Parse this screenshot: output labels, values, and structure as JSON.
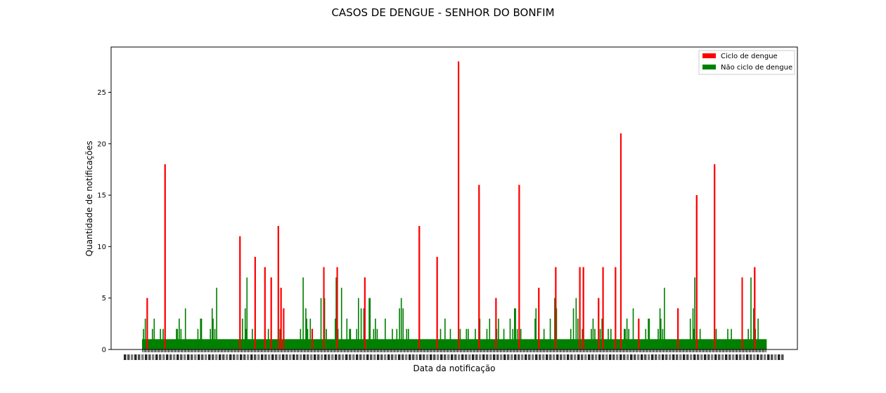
{
  "chart_data": {
    "type": "bar",
    "title": "CASOS DE DENGUE - SENHOR DO BONFIM",
    "xlabel": "Data da notificação",
    "ylabel": "Quantidade de notificações",
    "ylim": [
      0,
      29.4
    ],
    "yticks": [
      0,
      5,
      10,
      15,
      20,
      25
    ],
    "grid": false,
    "legend_position": "top-right",
    "colors": {
      "ciclo": "#ff0000",
      "nao_ciclo": "#008000"
    },
    "series": [
      {
        "name": "Ciclo de dengue",
        "color": "#ff0000"
      },
      {
        "name": "Não ciclo de dengue",
        "color": "#008000"
      }
    ],
    "x_tick_labels_note": "",
    "background_green_values": [
      1,
      2,
      1,
      3,
      1,
      2,
      1,
      1,
      1,
      1,
      1,
      2,
      1,
      3,
      1,
      1,
      1,
      1,
      1,
      1,
      2,
      1,
      1,
      2,
      1,
      1,
      1,
      1,
      1,
      1,
      1,
      1,
      1,
      1,
      1,
      1,
      1,
      1,
      2,
      2,
      1,
      3,
      1,
      2,
      1,
      1,
      1,
      1,
      4,
      1,
      1,
      1,
      1,
      1,
      1,
      1,
      1,
      1,
      1,
      1,
      1,
      1,
      2,
      1,
      1,
      3,
      3,
      1,
      1,
      1,
      1,
      1,
      1,
      1,
      1,
      1,
      2,
      1,
      4,
      3,
      1,
      2,
      1,
      6,
      1,
      1,
      1,
      1,
      1,
      1,
      1,
      1,
      1,
      1,
      1,
      1,
      1,
      1,
      1,
      1,
      1,
      1,
      1,
      1,
      1,
      1,
      1,
      1,
      1,
      1,
      1,
      1,
      3,
      1,
      1,
      4,
      2,
      7,
      1,
      1,
      1,
      1,
      1,
      2,
      1,
      1,
      1,
      1,
      1,
      1,
      1,
      1,
      1,
      1,
      1,
      1,
      1,
      1,
      1,
      1,
      1,
      2,
      1,
      1,
      1,
      1,
      1,
      1,
      1,
      1,
      1,
      1,
      1,
      1,
      2,
      1,
      1,
      1,
      2,
      1,
      1,
      1,
      1,
      1,
      1,
      1,
      1,
      1,
      1,
      1,
      1,
      1,
      1,
      1,
      1,
      1,
      1,
      2,
      1,
      1,
      7,
      1,
      1,
      4,
      3,
      2,
      1,
      1,
      3,
      1,
      1,
      1,
      1,
      1,
      1,
      1,
      1,
      1,
      1,
      1,
      5,
      1,
      1,
      1,
      5,
      1,
      2,
      1,
      1,
      1,
      1,
      1,
      1,
      1,
      1,
      1,
      3,
      7,
      1,
      2,
      1,
      1,
      1,
      6,
      1,
      1,
      1,
      1,
      1,
      3,
      1,
      1,
      2,
      2,
      1,
      1,
      1,
      1,
      1,
      1,
      2,
      1,
      5,
      1,
      1,
      4,
      1,
      1,
      4,
      1,
      1,
      1,
      1,
      1,
      5,
      5,
      1,
      1,
      1,
      2,
      1,
      3,
      1,
      2,
      1,
      1,
      1,
      1,
      1,
      1,
      1,
      1,
      3,
      1,
      1,
      1,
      1,
      1,
      1,
      1,
      2,
      1,
      1,
      1,
      1,
      2,
      1,
      1,
      4,
      1,
      5,
      1,
      4,
      1,
      1,
      1,
      2,
      1,
      2,
      1,
      1,
      1,
      1,
      1,
      1,
      1,
      1,
      1,
      1,
      1,
      1,
      1,
      1,
      1,
      1,
      1,
      1,
      1,
      1,
      1,
      1,
      1,
      1,
      1,
      1,
      1,
      1,
      1,
      1,
      1,
      2,
      1,
      1,
      1,
      2,
      1,
      1,
      1,
      1,
      3,
      1,
      1,
      1,
      1,
      1,
      2,
      1,
      1,
      1,
      1,
      1,
      1,
      1,
      1,
      1,
      1,
      2,
      1,
      1,
      1,
      1,
      1,
      1,
      2,
      1,
      2,
      1,
      1,
      1,
      1,
      1,
      1,
      1,
      2,
      1,
      1,
      1,
      2,
      3,
      1,
      1,
      1,
      1,
      1,
      1,
      1,
      2,
      1,
      1,
      3,
      1,
      1,
      1,
      1,
      1,
      1,
      1,
      2,
      1,
      3,
      1,
      1,
      1,
      1,
      1,
      2,
      1,
      1,
      1,
      1,
      1,
      1,
      3,
      1,
      1,
      2,
      1,
      4,
      4,
      1,
      2,
      1,
      1,
      1,
      2,
      1,
      1,
      1,
      1,
      1,
      1,
      1,
      1,
      1,
      1,
      1,
      1,
      1,
      1,
      1,
      3,
      4,
      1,
      1,
      1,
      1,
      1,
      1,
      1,
      1,
      2,
      1,
      1,
      1,
      1,
      1,
      1,
      3,
      1,
      1,
      1,
      1,
      5,
      1,
      4,
      1,
      1,
      1,
      1,
      1,
      1,
      1,
      1,
      1,
      1,
      1,
      1,
      1,
      1,
      1,
      2,
      1,
      1,
      4,
      1,
      1,
      5,
      1,
      3,
      1,
      1,
      1,
      1,
      2,
      1,
      1,
      1,
      1,
      1,
      1,
      1,
      1
    ],
    "red_spikes": [
      {
        "idx": 5,
        "value": 5
      },
      {
        "idx": 25,
        "value": 18
      },
      {
        "idx": 109,
        "value": 11
      },
      {
        "idx": 126,
        "value": 9
      },
      {
        "idx": 137,
        "value": 8
      },
      {
        "idx": 144,
        "value": 7
      },
      {
        "idx": 152,
        "value": 12
      },
      {
        "idx": 155,
        "value": 6
      },
      {
        "idx": 158,
        "value": 4
      },
      {
        "idx": 190,
        "value": 2
      },
      {
        "idx": 203,
        "value": 8
      },
      {
        "idx": 218,
        "value": 8
      },
      {
        "idx": 249,
        "value": 7
      },
      {
        "idx": 310,
        "value": 12
      },
      {
        "idx": 330,
        "value": 9
      },
      {
        "idx": 354,
        "value": 28
      },
      {
        "idx": 377,
        "value": 16
      },
      {
        "idx": 396,
        "value": 5
      },
      {
        "idx": 422,
        "value": 16
      },
      {
        "idx": 444,
        "value": 6
      },
      {
        "idx": 463,
        "value": 8
      },
      {
        "idx": 490,
        "value": 8
      },
      {
        "idx": 494,
        "value": 8
      },
      {
        "idx": 511,
        "value": 5
      },
      {
        "idx": 516,
        "value": 8
      },
      {
        "idx": 530,
        "value": 8
      },
      {
        "idx": 536,
        "value": 21
      },
      {
        "idx": 556,
        "value": 3
      },
      {
        "idx": 600,
        "value": 4
      },
      {
        "idx": 621,
        "value": 15
      },
      {
        "idx": 641,
        "value": 18
      },
      {
        "idx": 672,
        "value": 7
      },
      {
        "idx": 686,
        "value": 8
      }
    ],
    "bar_count": 700
  }
}
